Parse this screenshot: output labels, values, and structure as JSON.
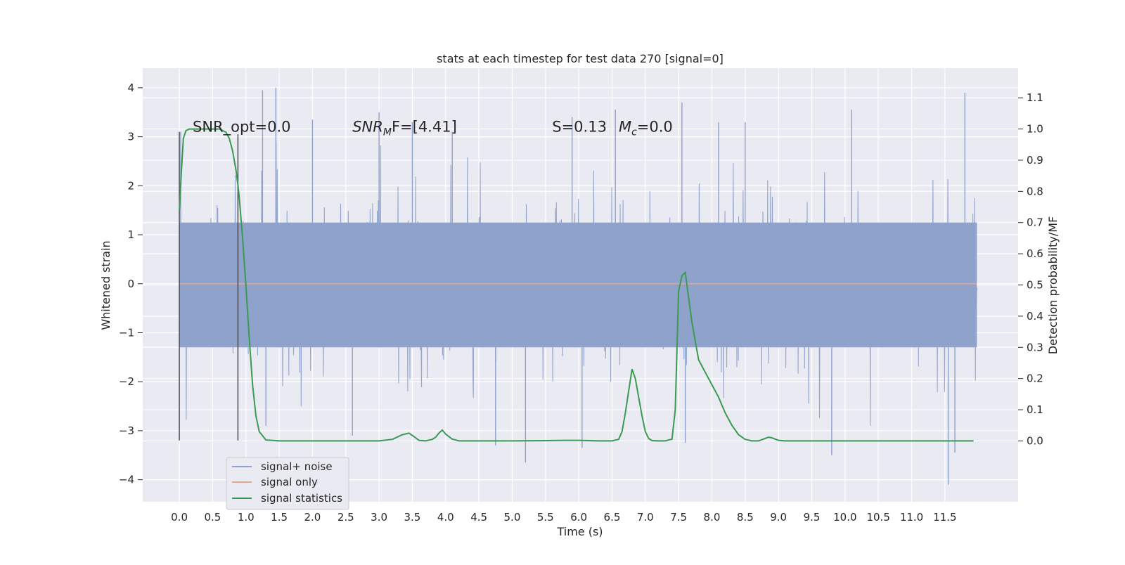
{
  "chart_data": {
    "type": "line",
    "title": "stats at each timestep for test data 270 [signal=0]",
    "xlabel": "Time (s)",
    "ylabel": "Whitened strain",
    "y2label": "Detection probability/MF",
    "xlim": [
      -0.55,
      12.6
    ],
    "ylim": [
      -4.45,
      4.4
    ],
    "y2lim": [
      -0.195,
      1.195
    ],
    "x_ticks": [
      0.0,
      0.5,
      1.0,
      1.5,
      2.0,
      2.5,
      3.0,
      3.5,
      4.0,
      4.5,
      5.0,
      5.5,
      6.0,
      6.5,
      7.0,
      7.5,
      8.0,
      8.5,
      9.0,
      9.5,
      10.0,
      10.5,
      11.0,
      11.5
    ],
    "x_tick_labels": [
      "0.0",
      "0.5",
      "1.0",
      "1.5",
      "2.0",
      "2.5",
      "3.0",
      "3.5",
      "4.0",
      "4.5",
      "5.0",
      "5.5",
      "6.0",
      "6.5",
      "7.0",
      "7.5",
      "8.0",
      "8.5",
      "9.0",
      "9.5",
      "10.0",
      "10.5",
      "11.0",
      "11.5"
    ],
    "y_ticks": [
      -4,
      -3,
      -2,
      -1,
      0,
      1,
      2,
      3,
      4
    ],
    "y_tick_labels": [
      "−4",
      "−3",
      "−2",
      "−1",
      "0",
      "1",
      "2",
      "3",
      "4"
    ],
    "y2_ticks": [
      0.0,
      0.1,
      0.2,
      0.3,
      0.4,
      0.5,
      0.6,
      0.7,
      0.8,
      0.9,
      1.0,
      1.1
    ],
    "y2_tick_labels": [
      "0.0",
      "0.1",
      "0.2",
      "0.3",
      "0.4",
      "0.5",
      "0.6",
      "0.7",
      "0.8",
      "0.9",
      "1.0",
      "1.1"
    ],
    "grid": true,
    "legend_position": "lower-left",
    "annotations": [
      {
        "text": "SNR_opt=0.0",
        "x": 0.2,
        "y": 3.2
      },
      {
        "text": "SNR",
        "sub": "M",
        "tail": "F=[4.41]",
        "x": 2.6,
        "y": 3.2
      },
      {
        "text": "S=0.13",
        "x": 5.6,
        "y": 3.2
      },
      {
        "text": "M",
        "sub": "c",
        "tail": "=0.0",
        "x": 6.6,
        "y": 3.2
      }
    ],
    "markers": [
      {
        "x": 0.0,
        "y_bottom": -3.2,
        "y_top": 3.1
      },
      {
        "x": 0.88,
        "y_bottom": -3.2,
        "y_top": 3.05
      }
    ],
    "series": [
      {
        "name": "signal+ noise",
        "axis": "left",
        "color": "#8fa2cc",
        "x_range": [
          0.0,
          11.98
        ],
        "band": [
          -1.3,
          1.25
        ],
        "peaks_up": [
          [
            0.02,
            3.1
          ],
          [
            1.25,
            3.95
          ],
          [
            1.45,
            4.0
          ],
          [
            2.0,
            3.35
          ],
          [
            3.0,
            3.5
          ],
          [
            3.5,
            3.3
          ],
          [
            4.1,
            3.1
          ],
          [
            5.9,
            3.4
          ],
          [
            6.55,
            3.55
          ],
          [
            7.55,
            3.7
          ],
          [
            8.1,
            3.3
          ],
          [
            8.5,
            3.3
          ],
          [
            10.1,
            3.55
          ],
          [
            11.8,
            3.9
          ]
        ],
        "peaks_down": [
          [
            1.3,
            -2.9
          ],
          [
            2.6,
            -3.1
          ],
          [
            4.75,
            -3.3
          ],
          [
            5.2,
            -3.65
          ],
          [
            6.05,
            -3.35
          ],
          [
            7.6,
            -3.25
          ],
          [
            9.8,
            -3.5
          ],
          [
            11.55,
            -4.1
          ],
          [
            11.65,
            -3.45
          ]
        ]
      },
      {
        "name": "signal only",
        "axis": "left",
        "color": "#e8a58d",
        "x": [
          0.0,
          11.98
        ],
        "y": [
          0.0,
          0.0
        ]
      },
      {
        "name": "signal statistics",
        "axis": "right",
        "color": "#3a9a52",
        "x": [
          0.0,
          0.03,
          0.06,
          0.1,
          0.15,
          0.2,
          0.3,
          0.4,
          0.5,
          0.6,
          0.65,
          0.7,
          0.75,
          0.8,
          0.85,
          0.88,
          0.9,
          0.95,
          1.0,
          1.05,
          1.1,
          1.15,
          1.2,
          1.3,
          1.5,
          2.0,
          2.5,
          3.0,
          3.2,
          3.35,
          3.45,
          3.55,
          3.6,
          3.7,
          3.8,
          3.85,
          3.9,
          3.95,
          4.0,
          4.1,
          4.2,
          4.3,
          4.5,
          5.0,
          5.5,
          5.8,
          6.0,
          6.3,
          6.5,
          6.6,
          6.65,
          6.7,
          6.75,
          6.8,
          6.85,
          6.9,
          6.95,
          7.0,
          7.05,
          7.1,
          7.2,
          7.3,
          7.4,
          7.45,
          7.5,
          7.55,
          7.6,
          7.65,
          7.7,
          7.75,
          7.8,
          7.9,
          8.0,
          8.1,
          8.2,
          8.3,
          8.4,
          8.5,
          8.6,
          8.7,
          8.8,
          8.85,
          8.9,
          8.95,
          9.0,
          9.1,
          9.3,
          9.5,
          10.0,
          10.5,
          11.0,
          11.5,
          11.93
        ],
        "y": [
          0.74,
          0.86,
          0.97,
          0.995,
          1.0,
          1.0,
          1.0,
          1.0,
          1.0,
          1.0,
          0.995,
          0.99,
          0.97,
          0.93,
          0.87,
          0.82,
          0.78,
          0.65,
          0.5,
          0.33,
          0.18,
          0.08,
          0.03,
          0.003,
          0.0,
          0.0,
          0.0,
          0.0,
          0.005,
          0.02,
          0.025,
          0.01,
          0.002,
          0.0,
          0.005,
          0.012,
          0.025,
          0.035,
          0.022,
          0.006,
          0.0,
          0.0,
          0.0,
          0.0,
          0.001,
          0.002,
          0.002,
          0.0,
          0.0,
          0.005,
          0.03,
          0.09,
          0.16,
          0.23,
          0.2,
          0.14,
          0.08,
          0.03,
          0.008,
          0.001,
          0.0,
          0.0,
          0.006,
          0.1,
          0.48,
          0.53,
          0.54,
          0.46,
          0.38,
          0.32,
          0.26,
          0.22,
          0.18,
          0.14,
          0.09,
          0.05,
          0.02,
          0.005,
          0.0,
          0.0,
          0.008,
          0.012,
          0.01,
          0.006,
          0.002,
          0.0,
          0.0,
          0.0,
          0.0,
          0.0,
          0.0,
          0.0,
          0.0
        ]
      }
    ]
  },
  "legend": {
    "items": [
      {
        "label": "signal+ noise",
        "color": "#8fa2cc"
      },
      {
        "label": "signal only",
        "color": "#e8a58d"
      },
      {
        "label": "signal statistics",
        "color": "#3a9a52"
      }
    ]
  }
}
